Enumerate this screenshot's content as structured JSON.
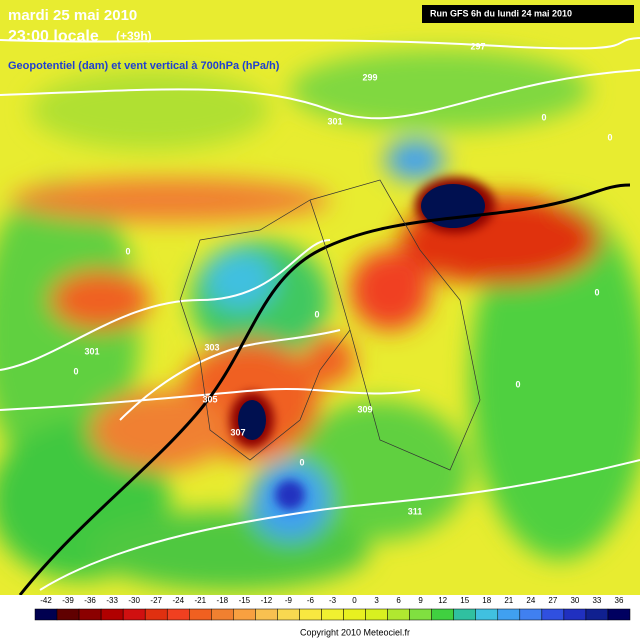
{
  "header": {
    "date": "mardi 25 mai 2010",
    "time": "23:00 locale",
    "lead": "(+39h)",
    "subtitle": "Geopotentiel (dam) et vent vertical à 700hPa (hPa/h)",
    "run": "Run GFS 6h du lundi 24 mai 2010"
  },
  "contour_labels": [
    297,
    299,
    301,
    301,
    303,
    305,
    307,
    309,
    311,
    0,
    0,
    0,
    0,
    0,
    0,
    0,
    0
  ],
  "colorbar": {
    "values": [
      -42,
      -39,
      -36,
      -33,
      -30,
      -27,
      -24,
      -21,
      -18,
      -15,
      -12,
      -9,
      -6,
      -3,
      0,
      3,
      6,
      9,
      12,
      15,
      18,
      21,
      24,
      27,
      30,
      33,
      36
    ],
    "colors": [
      "#000050",
      "#600000",
      "#8b0000",
      "#b00000",
      "#d01010",
      "#e03010",
      "#f04020",
      "#f06020",
      "#f08030",
      "#f8a040",
      "#f8c050",
      "#f8d850",
      "#f8e840",
      "#f0f030",
      "#e8f020",
      "#d8f020",
      "#b0e830",
      "#80e040",
      "#40d040",
      "#30c0a0",
      "#40c0e0",
      "#40a0f0",
      "#4080f0",
      "#3050e0",
      "#2030c0",
      "#102090",
      "#000060"
    ]
  },
  "footer": {
    "copyright": "Copyright 2010 Meteociel.fr"
  }
}
